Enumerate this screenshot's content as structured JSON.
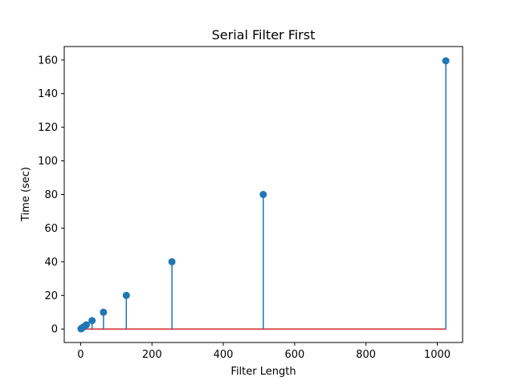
{
  "chart_data": {
    "type": "stem",
    "title": "Serial Filter First",
    "xlabel": "Filter Length",
    "ylabel": "Time (sec)",
    "x": [
      1,
      2,
      4,
      8,
      16,
      32,
      64,
      128,
      256,
      512,
      1024
    ],
    "y": [
      0.16,
      0.31,
      0.62,
      1.25,
      2.5,
      5.0,
      10.0,
      20.0,
      40.0,
      80.0,
      159.5
    ],
    "xlim": [
      -46,
      1071
    ],
    "ylim": [
      -8,
      168
    ],
    "xticks": [
      0,
      200,
      400,
      600,
      800,
      1000
    ],
    "yticks": [
      0,
      20,
      40,
      60,
      80,
      100,
      120,
      140,
      160
    ],
    "baseline": 0,
    "grid": false,
    "colors": {
      "stem": "#1f77b4",
      "marker": "#1f77b4",
      "baseline": "#d62728"
    }
  }
}
